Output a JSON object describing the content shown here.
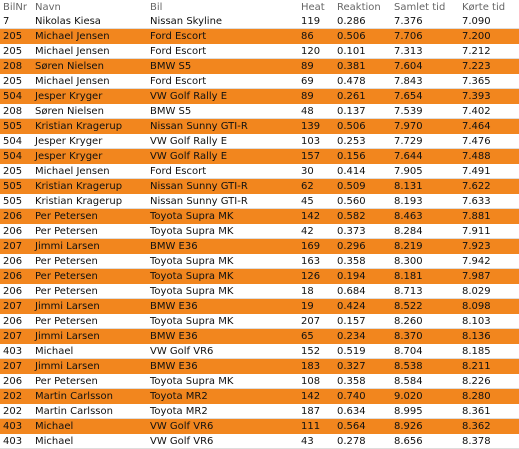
{
  "table": {
    "headers": [
      "BilNr",
      "Navn",
      "Bil",
      "Heat",
      "Reaktion",
      "Samlet tid",
      "Kørte tid"
    ],
    "rows": [
      [
        "7",
        "Nikolas Kiesa",
        "Nissan Skyline",
        "119",
        "0.286",
        "7.376",
        "7.090"
      ],
      [
        "205",
        "Michael Jensen",
        "Ford Escort",
        "86",
        "0.506",
        "7.706",
        "7.200"
      ],
      [
        "205",
        "Michael Jensen",
        "Ford Escort",
        "120",
        "0.101",
        "7.313",
        "7.212"
      ],
      [
        "208",
        "Søren Nielsen",
        "BMW S5",
        "89",
        "0.381",
        "7.604",
        "7.223"
      ],
      [
        "205",
        "Michael Jensen",
        "Ford Escort",
        "69",
        "0.478",
        "7.843",
        "7.365"
      ],
      [
        "504",
        "Jesper Kryger",
        "VW Golf Rally E",
        "89",
        "0.261",
        "7.654",
        "7.393"
      ],
      [
        "208",
        "Søren Nielsen",
        "BMW S5",
        "48",
        "0.137",
        "7.539",
        "7.402"
      ],
      [
        "505",
        "Kristian Kragerup",
        "Nissan Sunny GTI-R",
        "139",
        "0.506",
        "7.970",
        "7.464"
      ],
      [
        "504",
        "Jesper Kryger",
        "VW Golf Rally E",
        "103",
        "0.253",
        "7.729",
        "7.476"
      ],
      [
        "504",
        "Jesper Kryger",
        "VW Golf Rally E",
        "157",
        "0.156",
        "7.644",
        "7.488"
      ],
      [
        "205",
        "Michael Jensen",
        "Ford Escort",
        "30",
        "0.414",
        "7.905",
        "7.491"
      ],
      [
        "505",
        "Kristian Kragerup",
        "Nissan Sunny GTI-R",
        "62",
        "0.509",
        "8.131",
        "7.622"
      ],
      [
        "505",
        "Kristian Kragerup",
        "Nissan Sunny GTI-R",
        "45",
        "0.560",
        "8.193",
        "7.633"
      ],
      [
        "206",
        "Per Petersen",
        "Toyota Supra MK",
        "142",
        "0.582",
        "8.463",
        "7.881"
      ],
      [
        "206",
        "Per Petersen",
        "Toyota Supra MK",
        "42",
        "0.373",
        "8.284",
        "7.911"
      ],
      [
        "207",
        "Jimmi Larsen",
        "BMW E36",
        "169",
        "0.296",
        "8.219",
        "7.923"
      ],
      [
        "206",
        "Per Petersen",
        "Toyota Supra MK",
        "163",
        "0.358",
        "8.300",
        "7.942"
      ],
      [
        "206",
        "Per Petersen",
        "Toyota Supra MK",
        "126",
        "0.194",
        "8.181",
        "7.987"
      ],
      [
        "206",
        "Per Petersen",
        "Toyota Supra MK",
        "18",
        "0.684",
        "8.713",
        "8.029"
      ],
      [
        "207",
        "Jimmi Larsen",
        "BMW E36",
        "19",
        "0.424",
        "8.522",
        "8.098"
      ],
      [
        "206",
        "Per Petersen",
        "Toyota Supra MK",
        "207",
        "0.157",
        "8.260",
        "8.103"
      ],
      [
        "207",
        "Jimmi Larsen",
        "BMW E36",
        "65",
        "0.234",
        "8.370",
        "8.136"
      ],
      [
        "403",
        "Michael",
        "VW Golf VR6",
        "152",
        "0.519",
        "8.704",
        "8.185"
      ],
      [
        "207",
        "Jimmi Larsen",
        "BMW E36",
        "183",
        "0.327",
        "8.538",
        "8.211"
      ],
      [
        "206",
        "Per Petersen",
        "Toyota Supra MK",
        "108",
        "0.358",
        "8.584",
        "8.226"
      ],
      [
        "202",
        "Martin Carlsson",
        "Toyota MR2",
        "142",
        "0.740",
        "9.020",
        "8.280"
      ],
      [
        "202",
        "Martin Carlsson",
        "Toyota MR2",
        "187",
        "0.634",
        "8.995",
        "8.361"
      ],
      [
        "403",
        "Michael",
        "VW Golf VR6",
        "111",
        "0.564",
        "8.926",
        "8.362"
      ],
      [
        "403",
        "Michael",
        "VW Golf VR6",
        "43",
        "0.278",
        "8.656",
        "8.378"
      ]
    ]
  }
}
